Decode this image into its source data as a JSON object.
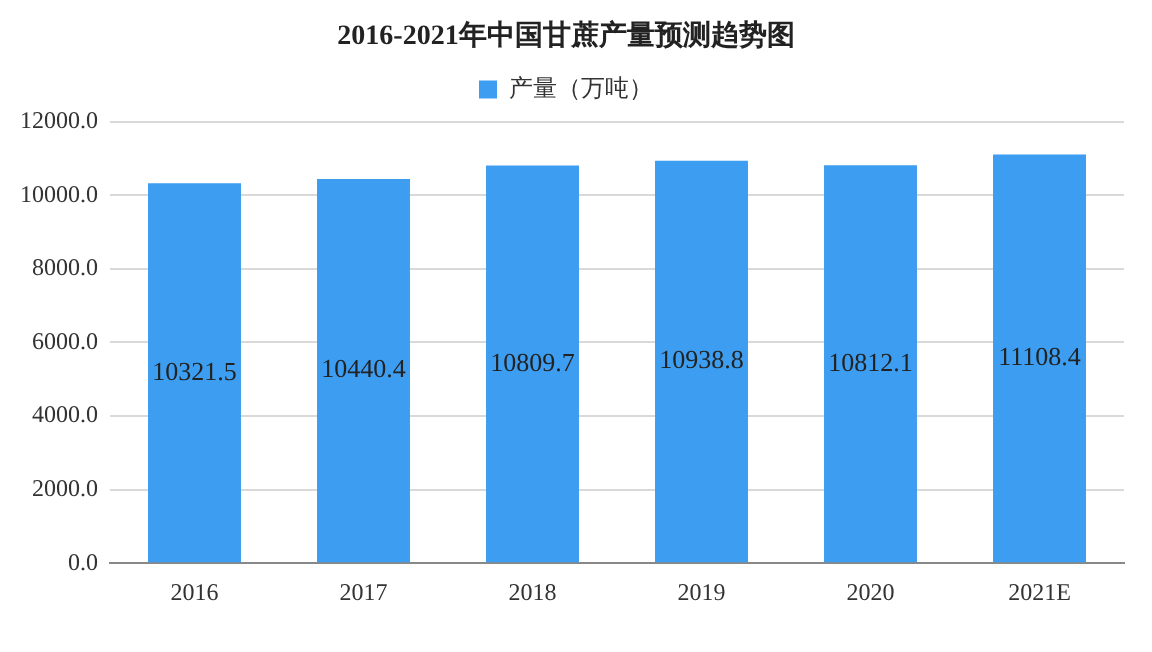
{
  "chart_data": {
    "type": "bar",
    "title": "2016-2021年中国甘蔗产量预测趋势图",
    "categories": [
      "2016",
      "2017",
      "2018",
      "2019",
      "2020",
      "2021E"
    ],
    "series": [
      {
        "name": "产量（万吨）",
        "color": "#3d9df0",
        "values": [
          10321.5,
          10440.4,
          10809.7,
          10938.8,
          10812.1,
          11108.4
        ]
      }
    ],
    "ylim": [
      0,
      12000
    ],
    "yticks": [
      {
        "value": 0,
        "label": "0.0"
      },
      {
        "value": 2000,
        "label": "2000.0"
      },
      {
        "value": 4000,
        "label": "4000.0"
      },
      {
        "value": 6000,
        "label": "6000.0"
      },
      {
        "value": 8000,
        "label": "8000.0"
      },
      {
        "value": 10000,
        "label": "10000.0"
      },
      {
        "value": 12000,
        "label": "12000.0"
      }
    ],
    "grid": "y",
    "legend": "top",
    "data_labels": true
  }
}
